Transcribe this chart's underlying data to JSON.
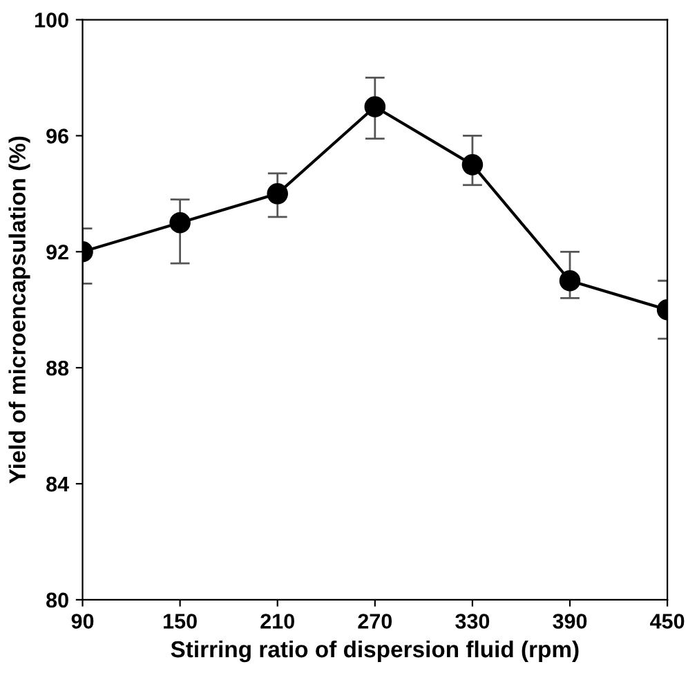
{
  "chart_data": {
    "type": "line",
    "xlabel": "Stirring ratio of dispersion fluid (rpm)",
    "ylabel": "Yield of microencapsulation (%)",
    "x": [
      90,
      150,
      210,
      270,
      330,
      390,
      450
    ],
    "series": [
      {
        "color": "#000000",
        "values": [
          92,
          93,
          94,
          97,
          95,
          91,
          90
        ],
        "errors": [
          [
            90.9,
            92.8
          ],
          [
            91.6,
            93.8
          ],
          [
            93.2,
            94.7
          ],
          [
            95.9,
            98.0
          ],
          [
            94.3,
            96.0
          ],
          [
            90.4,
            92.0
          ],
          [
            89.0,
            91.0
          ]
        ]
      }
    ],
    "xlim": [
      90,
      450
    ],
    "xticks": [
      90,
      150,
      210,
      270,
      330,
      390,
      450
    ],
    "ylim": [
      80,
      100
    ],
    "yticks": [
      80,
      84,
      88,
      92,
      96,
      100
    ],
    "marker": "circle",
    "line_style": "solid",
    "grid": false,
    "legend": false
  }
}
